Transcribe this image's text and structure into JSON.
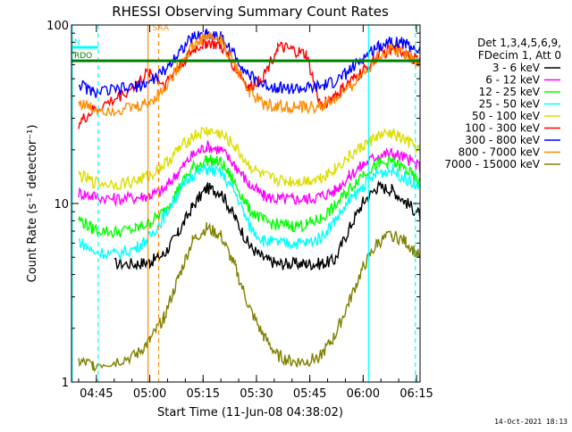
{
  "chart_data": {
    "type": "line",
    "title": "RHESSI Observing Summary Count Rates",
    "xlabel": "Start Time (11-Jun-08 04:38:02)",
    "ylabel": "Count Rate (s⁻¹ detector⁻¹)",
    "yscale": "log",
    "ylim": [
      1,
      100
    ],
    "xlim_minutes": [
      0,
      98
    ],
    "x_ticks": [
      {
        "label": "04:45",
        "minute": 7
      },
      {
        "label": "05:00",
        "minute": 22
      },
      {
        "label": "05:15",
        "minute": 37
      },
      {
        "label": "05:30",
        "minute": 52
      },
      {
        "label": "05:45",
        "minute": 67
      },
      {
        "label": "06:00",
        "minute": 82
      },
      {
        "label": "06:15",
        "minute": 97
      }
    ],
    "y_ticks": [
      {
        "label": "1",
        "value": 1
      },
      {
        "label": "10",
        "value": 10
      },
      {
        "label": "100",
        "value": 100
      }
    ],
    "x_minutes": [
      0,
      2,
      6,
      12,
      18,
      22,
      26,
      30,
      34,
      38,
      42,
      46,
      50,
      54,
      58,
      62,
      66,
      70,
      74,
      78,
      82,
      86,
      90,
      94,
      98
    ],
    "series": [
      {
        "name": "3 - 6 keV",
        "color": "#000000",
        "values": [
          null,
          null,
          null,
          4.6,
          4.6,
          4.7,
          5.2,
          6.8,
          9.6,
          12.2,
          11.6,
          8.3,
          5.8,
          4.9,
          4.6,
          4.6,
          4.6,
          4.6,
          4.8,
          7.2,
          10.2,
          12.4,
          12.0,
          10.2,
          8.6
        ]
      },
      {
        "name": "6 - 12 keV",
        "color": "#ff00ff",
        "values": [
          null,
          11.5,
          11.0,
          10.6,
          10.8,
          11.1,
          11.9,
          15.0,
          18.6,
          21.0,
          20.0,
          16.4,
          12.8,
          11.0,
          10.6,
          10.6,
          10.6,
          11.0,
          11.8,
          14.2,
          16.5,
          18.6,
          19.2,
          18.0,
          16.0
        ]
      },
      {
        "name": "12 - 25 keV",
        "color": "#00ff00",
        "values": [
          null,
          8.2,
          7.2,
          6.9,
          7.2,
          7.8,
          9.0,
          12.0,
          15.8,
          17.6,
          17.0,
          13.0,
          9.3,
          8.0,
          7.6,
          7.5,
          7.6,
          8.2,
          9.6,
          12.0,
          14.8,
          16.4,
          17.2,
          15.5,
          13.0
        ]
      },
      {
        "name": "25 - 50 keV",
        "color": "#00ffff",
        "values": [
          null,
          6.2,
          5.4,
          5.2,
          5.6,
          6.5,
          8.4,
          11.5,
          14.5,
          15.6,
          14.8,
          11.6,
          7.5,
          6.2,
          6.0,
          6.0,
          6.0,
          6.4,
          8.0,
          10.2,
          12.5,
          14.8,
          15.4,
          13.8,
          12.0
        ]
      },
      {
        "name": "50 - 100 keV",
        "color": "#dddd00",
        "values": [
          null,
          14.5,
          13.2,
          12.8,
          13.3,
          14.4,
          16.4,
          20.0,
          23.8,
          25.5,
          24.5,
          20.8,
          16.2,
          14.2,
          13.5,
          13.3,
          13.4,
          14.0,
          15.6,
          18.2,
          21.0,
          23.8,
          24.6,
          22.5,
          20.0
        ]
      },
      {
        "name": "100 - 300 keV",
        "color": "#ff0000",
        "values": [
          null,
          28.0,
          33.0,
          38.0,
          46.0,
          55.0,
          46.0,
          58.0,
          72.0,
          80.0,
          76.0,
          58.0,
          44.0,
          52.0,
          75.0,
          72.0,
          68.0,
          35.0,
          40.0,
          47.0,
          55.0,
          67.0,
          73.0,
          70.0,
          62.0
        ]
      },
      {
        "name": "300 - 800 keV",
        "color": "#0000ff",
        "values": [
          null,
          47.0,
          42.0,
          43.0,
          45.0,
          48.0,
          55.0,
          70.0,
          85.0,
          90.0,
          86.0,
          67.0,
          52.0,
          46.0,
          45.0,
          44.0,
          44.0,
          45.0,
          48.0,
          55.0,
          65.0,
          76.0,
          82.0,
          78.0,
          72.0
        ]
      },
      {
        "name": "800 - 7000 keV",
        "color": "#ff8c00",
        "values": [
          null,
          37.0,
          34.0,
          33.5,
          34.5,
          37.0,
          44.0,
          58.0,
          76.0,
          87.0,
          82.0,
          60.0,
          42.0,
          36.0,
          35.0,
          34.5,
          34.5,
          35.0,
          38.0,
          44.0,
          54.0,
          66.0,
          74.0,
          70.0,
          60.0
        ]
      },
      {
        "name": "7000 - 15000 keV",
        "color": "#808000",
        "values": [
          null,
          1.3,
          1.25,
          1.3,
          1.4,
          1.7,
          2.3,
          3.8,
          6.2,
          7.3,
          6.6,
          4.4,
          2.6,
          1.8,
          1.4,
          1.3,
          1.3,
          1.4,
          1.8,
          2.8,
          4.4,
          6.0,
          6.7,
          6.1,
          5.0
        ]
      }
    ],
    "legend": {
      "placement": "right",
      "header_lines": [
        "Det 1,3,4,5,6,9,",
        "FDecim 1, Att 0"
      ]
    },
    "flags": [
      {
        "label": "RDO",
        "color": "#008000",
        "value": 63,
        "x_start": 0,
        "x_end": 98
      },
      {
        "label": "N",
        "color": "#00ffff",
        "value": 75,
        "x_start": 0,
        "x_end": 7.5
      },
      {
        "label": "SAA",
        "color": "#ff8c00",
        "value": 90,
        "x_start": 22,
        "x_end": 22
      }
    ],
    "markers": [
      {
        "kind": "eclipse",
        "color": "#00ffff",
        "style": "solid",
        "minute": 0.2
      },
      {
        "kind": "eclipse",
        "color": "#00ffff",
        "style": "dashed",
        "minute": 7.5
      },
      {
        "kind": "saa",
        "color": "#ff8c00",
        "style": "solid",
        "minute": 21.5
      },
      {
        "kind": "saa",
        "color": "#ff8c00",
        "style": "dashed",
        "minute": 24.5
      },
      {
        "kind": "eclipse",
        "color": "#00ffff",
        "style": "solid",
        "minute": 83.5
      },
      {
        "kind": "eclipse",
        "color": "#00ffff",
        "style": "dashed",
        "minute": 96.7
      }
    ],
    "timestamp": "14-Oct-2021 18:13"
  }
}
